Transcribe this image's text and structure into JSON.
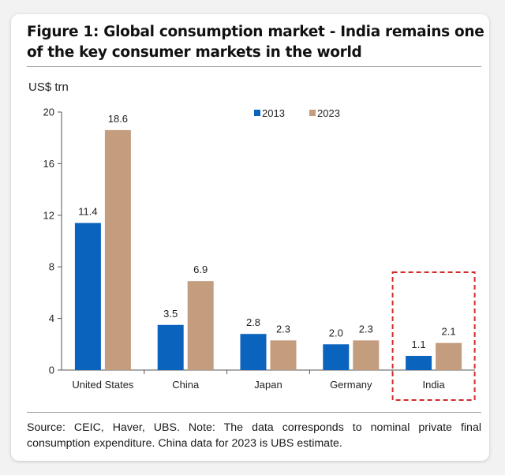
{
  "title": "Figure 1: Global consumption market - India remains one of the key consumer markets in the world",
  "unit_label": "US$ trn",
  "source_note": "Source: CEIC, Haver, UBS. Note: The data corresponds to nominal private final consumption expenditure. China data for 2023 is UBS estimate.",
  "colors": {
    "s2013": "#0a64bd",
    "s2023": "#c49c7e",
    "highlight": "#d42a2a"
  },
  "chart_data": {
    "type": "bar",
    "title": "Global consumption market",
    "ylabel": "US$ trn",
    "xlabel": "",
    "ylim": [
      0,
      20
    ],
    "yticks": [
      0,
      4,
      8,
      12,
      16,
      20
    ],
    "categories": [
      "United States",
      "China",
      "Japan",
      "Germany",
      "India"
    ],
    "series": [
      {
        "name": "2013",
        "values": [
          11.4,
          3.5,
          2.8,
          2.0,
          1.1
        ],
        "labels": [
          "11.4",
          "3.5",
          "2.8",
          "2.0",
          "1.1"
        ]
      },
      {
        "name": "2023",
        "values": [
          18.6,
          6.9,
          2.3,
          2.3,
          2.1
        ],
        "labels": [
          "18.6",
          "6.9",
          "2.3",
          "2.3",
          "2.1"
        ]
      }
    ],
    "highlight_category": "India"
  }
}
